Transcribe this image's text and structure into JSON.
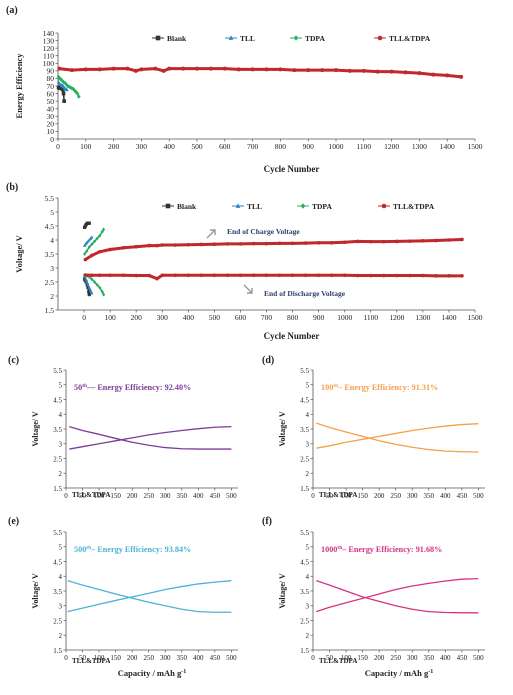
{
  "chart_data": [
    {
      "panel": "(a)",
      "type": "scatter",
      "xlabel": "Cycle Number",
      "ylabel": "Energy Efficiency",
      "xlim": [
        0,
        1500
      ],
      "ylim": [
        0,
        140
      ],
      "xticks": [
        0,
        100,
        200,
        300,
        400,
        500,
        600,
        700,
        800,
        900,
        1000,
        1100,
        1200,
        1300,
        1400,
        1500
      ],
      "yticks": [
        0,
        10,
        20,
        30,
        40,
        50,
        60,
        70,
        80,
        90,
        100,
        110,
        120,
        130,
        140
      ],
      "legend_position": "top",
      "series": [
        {
          "name": "Blank",
          "color": "#333333",
          "marker": "square",
          "x": [
            2,
            5,
            8,
            12,
            15,
            18,
            20,
            22
          ],
          "y": [
            68,
            67,
            69,
            70,
            66,
            65,
            60,
            50
          ]
        },
        {
          "name": "TLL",
          "color": "#2e86c1",
          "marker": "triangle",
          "x": [
            2,
            5,
            8,
            12,
            16,
            20,
            24,
            28,
            32
          ],
          "y": [
            75,
            73,
            72,
            71,
            70,
            69,
            67,
            66,
            65
          ]
        },
        {
          "name": "TDPA",
          "color": "#27ae60",
          "marker": "diamond",
          "x": [
            2,
            6,
            10,
            15,
            20,
            25,
            30,
            35,
            40,
            45,
            50,
            55,
            60,
            65,
            70,
            75
          ],
          "y": [
            82,
            80,
            79,
            77,
            75,
            74,
            72,
            70,
            69,
            68,
            67,
            66,
            64,
            62,
            60,
            56
          ]
        },
        {
          "name": "TLL&TDPA",
          "color": "#c0282d",
          "marker": "circle",
          "x": [
            5,
            50,
            100,
            150,
            200,
            250,
            280,
            300,
            350,
            380,
            400,
            450,
            500,
            550,
            600,
            650,
            700,
            750,
            800,
            850,
            900,
            950,
            1000,
            1050,
            1100,
            1150,
            1200,
            1250,
            1300,
            1350,
            1400,
            1450
          ],
          "y": [
            93,
            91,
            92,
            92,
            93,
            93,
            90,
            92,
            93,
            90,
            93,
            93,
            93,
            93,
            93,
            92,
            92,
            92,
            92,
            91,
            91,
            91,
            91,
            90,
            90,
            89,
            89,
            88,
            87,
            85,
            84,
            82
          ]
        }
      ]
    },
    {
      "panel": "(b)",
      "type": "scatter",
      "xlabel": "Cycle Number",
      "ylabel": "Voltage/ V",
      "xlim": [
        -100,
        1500
      ],
      "ylim": [
        1.5,
        5.5
      ],
      "xticks": [
        0,
        100,
        200,
        300,
        400,
        500,
        600,
        700,
        800,
        900,
        1000,
        1100,
        1200,
        1300,
        1400,
        1500
      ],
      "yticks": [
        1.5,
        2,
        2.5,
        3,
        3.5,
        4,
        4.5,
        5,
        5.5
      ],
      "legend_position": "top",
      "annotations": [
        "End of Charge Voltage",
        "End of Discharge Voltage"
      ],
      "series": [
        {
          "name": "Blank",
          "color": "#333333",
          "marker": "square",
          "x": [
            2,
            5,
            8,
            12,
            15,
            18,
            20
          ],
          "y_charge": [
            4.45,
            4.5,
            4.55,
            4.6,
            4.6,
            4.6,
            4.6
          ],
          "y_discharge": [
            2.6,
            2.55,
            2.5,
            2.4,
            2.3,
            2.15,
            2.05
          ]
        },
        {
          "name": "TLL",
          "color": "#2e86c1",
          "marker": "triangle",
          "x": [
            2,
            6,
            10,
            15,
            20,
            25,
            30
          ],
          "y_charge": [
            3.8,
            3.85,
            3.9,
            3.95,
            4.0,
            4.05,
            4.1
          ],
          "y_discharge": [
            2.7,
            2.6,
            2.5,
            2.4,
            2.3,
            2.2,
            2.1
          ]
        },
        {
          "name": "TDPA",
          "color": "#27ae60",
          "marker": "diamond",
          "x": [
            2,
            10,
            20,
            30,
            40,
            50,
            60,
            70,
            75
          ],
          "y_charge": [
            3.5,
            3.6,
            3.75,
            3.85,
            3.95,
            4.05,
            4.15,
            4.3,
            4.38
          ],
          "y_discharge": [
            2.75,
            2.72,
            2.68,
            2.6,
            2.5,
            2.4,
            2.3,
            2.15,
            2.05
          ]
        },
        {
          "name": "TLL&TDPA",
          "color": "#c0282d",
          "marker": "circle",
          "x": [
            5,
            30,
            60,
            100,
            150,
            200,
            250,
            280,
            300,
            350,
            400,
            450,
            500,
            550,
            600,
            650,
            700,
            750,
            800,
            850,
            900,
            950,
            1000,
            1050,
            1100,
            1150,
            1200,
            1250,
            1300,
            1350,
            1400,
            1450
          ],
          "y_charge": [
            3.3,
            3.45,
            3.58,
            3.66,
            3.72,
            3.76,
            3.8,
            3.8,
            3.82,
            3.82,
            3.83,
            3.84,
            3.85,
            3.86,
            3.86,
            3.87,
            3.87,
            3.88,
            3.88,
            3.89,
            3.9,
            3.9,
            3.92,
            3.95,
            3.94,
            3.94,
            3.95,
            3.96,
            3.97,
            3.98,
            4.0,
            4.02
          ],
          "y_discharge": [
            2.75,
            2.74,
            2.74,
            2.74,
            2.74,
            2.73,
            2.73,
            2.62,
            2.74,
            2.74,
            2.74,
            2.74,
            2.74,
            2.74,
            2.74,
            2.74,
            2.74,
            2.74,
            2.74,
            2.74,
            2.74,
            2.74,
            2.74,
            2.73,
            2.73,
            2.73,
            2.73,
            2.73,
            2.73,
            2.72,
            2.72,
            2.72
          ]
        }
      ]
    },
    {
      "panel": "(c)",
      "type": "line",
      "annotation_prefix": "50",
      "annotation_sup": "th",
      "annotation_suffix": "— Energy Efficiency: 92.40%",
      "label": "TLL&TDPA",
      "color": "#7d3c98",
      "xlabel": "",
      "ylabel": "Voltage/ V",
      "xlim": [
        0,
        520
      ],
      "ylim": [
        1.5,
        5.5
      ],
      "xticks": [
        0,
        50,
        100,
        150,
        200,
        250,
        300,
        350,
        400,
        450,
        500
      ],
      "yticks": [
        1.5,
        2,
        2.5,
        3,
        3.5,
        4,
        4.5,
        5,
        5.5
      ],
      "charge": {
        "x": [
          10,
          50,
          100,
          150,
          200,
          250,
          300,
          350,
          400,
          450,
          500
        ],
        "y": [
          2.82,
          2.9,
          3.0,
          3.1,
          3.2,
          3.3,
          3.38,
          3.45,
          3.51,
          3.56,
          3.58
        ]
      },
      "discharge": {
        "x": [
          10,
          50,
          100,
          150,
          200,
          250,
          300,
          350,
          400,
          450,
          500
        ],
        "y": [
          3.58,
          3.45,
          3.32,
          3.18,
          3.05,
          2.95,
          2.87,
          2.83,
          2.82,
          2.82,
          2.82
        ]
      }
    },
    {
      "panel": "(d)",
      "type": "line",
      "annotation_prefix": "100",
      "annotation_sup": "th",
      "annotation_suffix": "– Energy Efficiency: 91.31%",
      "label": "TLL&TDPA",
      "color": "#f5a04a",
      "xlabel": "",
      "ylabel": "Voltage/ V",
      "xlim": [
        0,
        520
      ],
      "ylim": [
        1.5,
        5.5
      ],
      "xticks": [
        0,
        50,
        100,
        150,
        200,
        250,
        300,
        350,
        400,
        450,
        500
      ],
      "yticks": [
        1.5,
        2,
        2.5,
        3,
        3.5,
        4,
        4.5,
        5,
        5.5
      ],
      "charge": {
        "x": [
          10,
          50,
          100,
          150,
          200,
          250,
          300,
          350,
          400,
          450,
          500
        ],
        "y": [
          2.85,
          2.93,
          3.05,
          3.15,
          3.25,
          3.35,
          3.45,
          3.53,
          3.6,
          3.65,
          3.68
        ]
      },
      "discharge": {
        "x": [
          10,
          50,
          100,
          150,
          200,
          250,
          300,
          350,
          400,
          450,
          500
        ],
        "y": [
          3.7,
          3.55,
          3.4,
          3.25,
          3.1,
          2.98,
          2.88,
          2.8,
          2.75,
          2.73,
          2.72
        ]
      }
    },
    {
      "panel": "(e)",
      "type": "line",
      "annotation_prefix": "500",
      "annotation_sup": "th",
      "annotation_suffix": "– Energy Efficiency: 93.84%",
      "label": "TLL&TDPA",
      "color": "#4eb3d3",
      "xlabel": "Capacity / mAh g-1",
      "ylabel": "Voltage/ V",
      "xlim": [
        0,
        520
      ],
      "ylim": [
        1.5,
        5.5
      ],
      "xticks": [
        0,
        50,
        100,
        150,
        200,
        250,
        300,
        350,
        400,
        450,
        500
      ],
      "yticks": [
        1.5,
        2,
        2.5,
        3,
        3.5,
        4,
        4.5,
        5,
        5.5
      ],
      "charge": {
        "x": [
          5,
          50,
          100,
          150,
          200,
          250,
          300,
          350,
          400,
          450,
          500
        ],
        "y": [
          2.8,
          2.92,
          3.05,
          3.18,
          3.3,
          3.42,
          3.55,
          3.65,
          3.74,
          3.8,
          3.85
        ]
      },
      "discharge": {
        "x": [
          5,
          50,
          100,
          150,
          200,
          250,
          300,
          350,
          400,
          450,
          500
        ],
        "y": [
          3.85,
          3.7,
          3.55,
          3.4,
          3.26,
          3.12,
          3.0,
          2.88,
          2.8,
          2.78,
          2.78
        ]
      }
    },
    {
      "panel": "(f)",
      "type": "line",
      "annotation_prefix": "1000",
      "annotation_sup": "th",
      "annotation_suffix": "– Energy Efficiency: 91.68%",
      "label": "TLL&TDPA",
      "color": "#d63384",
      "xlabel": "Capacity / mAh g-1",
      "ylabel": "Voltage/ V",
      "xlim": [
        0,
        520
      ],
      "ylim": [
        1.5,
        5.5
      ],
      "xticks": [
        0,
        50,
        100,
        150,
        200,
        250,
        300,
        350,
        400,
        450,
        500
      ],
      "yticks": [
        1.5,
        2,
        2.5,
        3,
        3.5,
        4,
        4.5,
        5,
        5.5
      ],
      "charge": {
        "x": [
          10,
          50,
          100,
          150,
          200,
          250,
          300,
          350,
          400,
          450,
          500
        ],
        "y": [
          2.8,
          2.95,
          3.1,
          3.25,
          3.4,
          3.55,
          3.67,
          3.76,
          3.84,
          3.9,
          3.92
        ]
      },
      "discharge": {
        "x": [
          10,
          50,
          100,
          150,
          200,
          250,
          300,
          350,
          400,
          450,
          500
        ],
        "y": [
          3.85,
          3.7,
          3.5,
          3.3,
          3.15,
          3.0,
          2.88,
          2.8,
          2.77,
          2.76,
          2.76
        ]
      }
    }
  ]
}
